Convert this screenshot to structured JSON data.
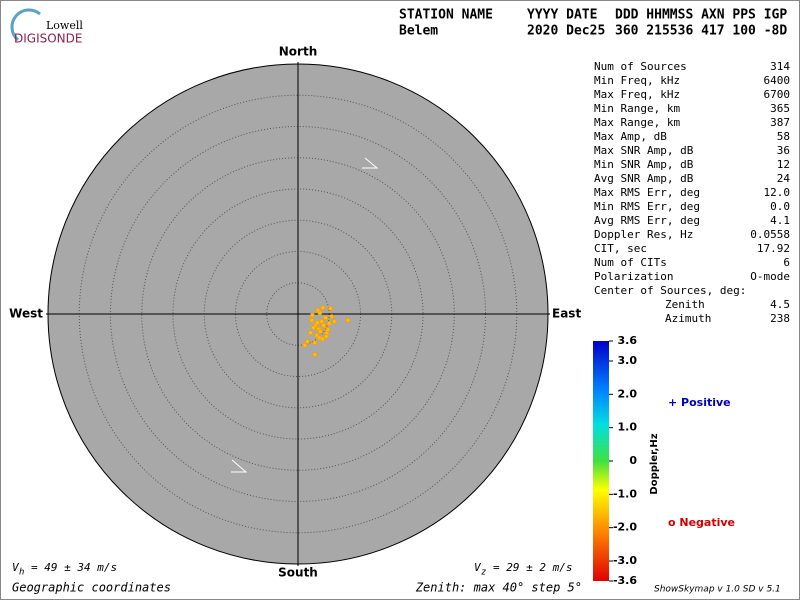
{
  "header": {
    "logo_top": "Lowell",
    "logo_bottom": "DIGISONDE",
    "station_label": "STATION NAME",
    "date_label": "YYYY DATE",
    "codes_label": "DDD HHMMSS AXN PPS IGP",
    "station": "Belem",
    "date": "2020 Dec25",
    "codes": "360 215536 417 100 -8D"
  },
  "stats": [
    [
      "Num of Sources",
      "314"
    ],
    [
      "Min Freq, kHz",
      "6400"
    ],
    [
      "Max Freq, kHz",
      "6700"
    ],
    [
      "Min Range, km",
      "365"
    ],
    [
      "Max Range, km",
      "387"
    ],
    [
      "Max Amp, dB",
      "58"
    ],
    [
      "Max SNR Amp, dB",
      "36"
    ],
    [
      "Min SNR Amp, dB",
      "12"
    ],
    [
      "Avg SNR Amp, dB",
      "24"
    ],
    [
      "Max RMS Err, deg",
      "12.0"
    ],
    [
      "Min RMS Err, deg",
      "0.0"
    ],
    [
      "Avg RMS Err, deg",
      "4.1"
    ],
    [
      "Doppler Res, Hz",
      "0.0558"
    ],
    [
      "CIT, sec",
      "17.92"
    ],
    [
      "Num of CITs",
      "6"
    ],
    [
      "Polarization",
      "O-mode"
    ]
  ],
  "center": {
    "title": "Center of Sources, deg:",
    "zenith_label": "Zenith",
    "zenith": "4.5",
    "azimuth_label": "Azimuth",
    "azimuth": "238"
  },
  "compass": {
    "north": "North",
    "south": "South",
    "east": "East",
    "west": "West"
  },
  "skymap": {
    "zenith_rings": [
      5,
      10,
      15,
      20,
      25,
      30,
      35,
      40
    ],
    "sources": {
      "east": [
        2.2,
        2.8,
        3.3,
        3.8,
        4.2,
        4.6,
        5.0,
        3.0,
        3.6,
        4.4,
        2.5,
        3.9,
        4.8,
        5.4,
        3.2,
        2.0,
        4.0,
        3.5,
        2.7,
        4.5,
        5.2,
        3.1,
        8.0,
        1.1,
        2.7,
        1.5,
        3.4,
        4.1,
        2.3,
        5.8
      ],
      "north": [
        -1.0,
        -1.8,
        -2.4,
        -1.2,
        -2.0,
        -3.0,
        -1.5,
        -3.4,
        -2.8,
        -0.6,
        -2.2,
        -4.0,
        -2.5,
        -0.4,
        0.6,
        -3.0,
        1.0,
        0.2,
        -4.6,
        -3.6,
        0.9,
        -1.4,
        -1.0,
        -5.0,
        -6.5,
        -4.4,
        -3.8,
        -1.8,
        -0.2,
        -1.2
      ]
    }
  },
  "colorbar": {
    "title": "Doppler,Hz",
    "lim": [
      -3.6,
      3.6
    ],
    "ticks": [
      {
        "value": 3.6,
        "label": "3.6"
      },
      {
        "value": 3.0,
        "label": "3.0"
      },
      {
        "value": 2.0,
        "label": "2.0"
      },
      {
        "value": 1.0,
        "label": "1.0"
      },
      0,
      {
        "value": -1.0,
        "label": "-1.0"
      },
      {
        "value": -2.0,
        "label": "-2.0"
      },
      {
        "value": -3.0,
        "label": "-3.0"
      },
      {
        "value": -3.6,
        "label": "-3.6"
      }
    ]
  },
  "legend": {
    "positive": "+ Positive",
    "negative": "o Negative"
  },
  "footer": {
    "vh_v": "V",
    "vh_sub": "h",
    "vh_text": "= 49 ± 34 m/s",
    "vz_v": "V",
    "vz_sub": "z",
    "vz_text": "= 29 ± 2 m/s",
    "coords": "Geographic coordinates",
    "zenith_info": "Zenith: max 40°  step 5°",
    "version": "ShowSkymap v 1.0  SD v 5.1"
  }
}
